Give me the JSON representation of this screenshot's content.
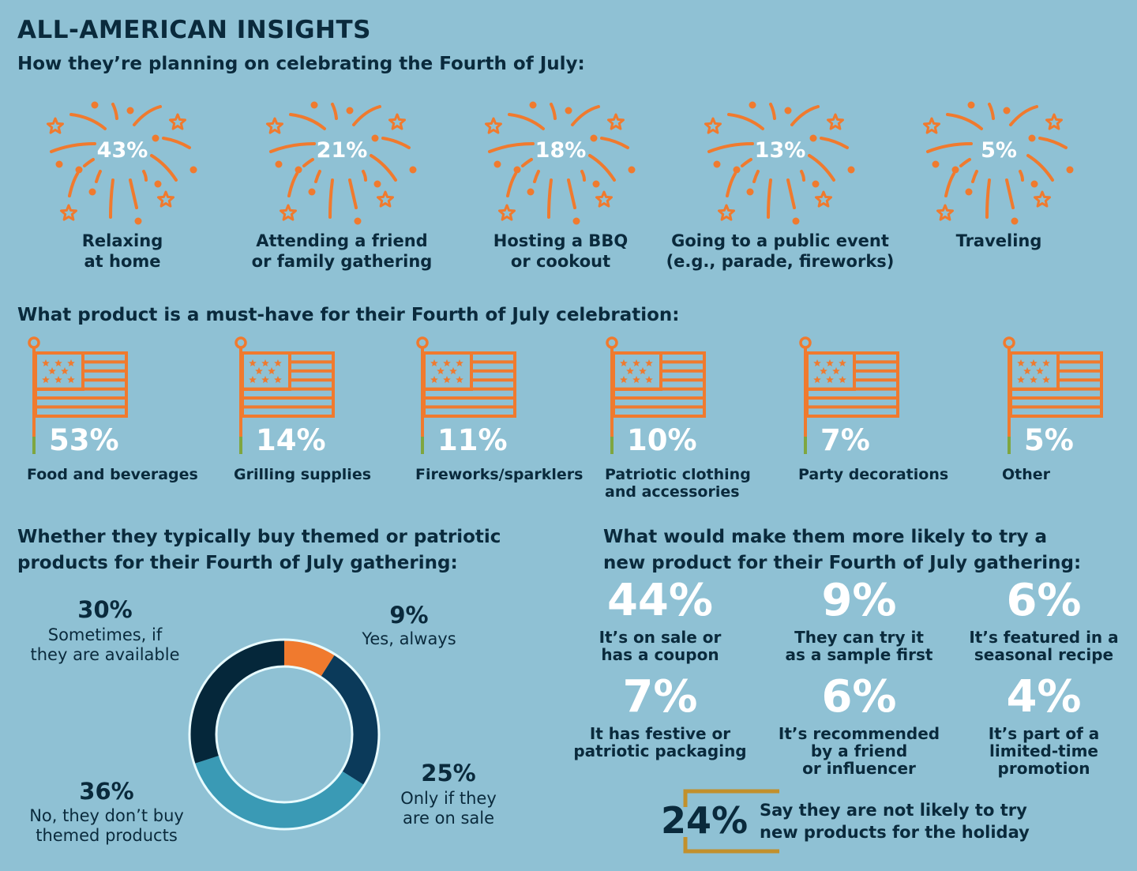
{
  "title": "ALL-AMERICAN INSIGHTS",
  "colors": {
    "background": "#8fc1d4",
    "text": "#0a2a3c",
    "accent": "#f07a2e"
  },
  "celebrating": {
    "heading": "How they’re planning on celebrating the Fourth of July:",
    "icon": "fireworks-icon",
    "items": [
      {
        "pct": "43%",
        "label1": "Relaxing",
        "label2": "at home"
      },
      {
        "pct": "21%",
        "label1": "Attending a friend",
        "label2": "or family gathering"
      },
      {
        "pct": "18%",
        "label1": "Hosting a BBQ",
        "label2": "or cookout"
      },
      {
        "pct": "13%",
        "label1": "Going to a public event",
        "label2": "(e.g., parade, fireworks)"
      },
      {
        "pct": "5%",
        "label1": "Traveling",
        "label2": ""
      }
    ]
  },
  "must_have": {
    "heading": "What product is a must-have for their Fourth of July celebration:",
    "icon": "flag-icon",
    "items": [
      {
        "pct": "53%",
        "label1": "Food and beverages",
        "label2": ""
      },
      {
        "pct": "14%",
        "label1": "Grilling supplies",
        "label2": ""
      },
      {
        "pct": "11%",
        "label1": "Fireworks/sparklers",
        "label2": ""
      },
      {
        "pct": "10%",
        "label1": "Patriotic clothing",
        "label2": "and accessories"
      },
      {
        "pct": "7%",
        "label1": "Party decorations",
        "label2": ""
      },
      {
        "pct": "5%",
        "label1": "Other",
        "label2": ""
      }
    ]
  },
  "themed": {
    "heading1": "Whether they typically buy themed or patriotic",
    "heading2": "products for their Fourth of July gathering:",
    "labels": [
      {
        "pct": "9%",
        "line1": "Yes, always",
        "line2": ""
      },
      {
        "pct": "25%",
        "line1": "Only if they",
        "line2": "are on sale"
      },
      {
        "pct": "36%",
        "line1": "No, they don’t buy",
        "line2": "themed products"
      },
      {
        "pct": "30%",
        "line1": "Sometimes, if",
        "line2": "they are available"
      }
    ]
  },
  "chart_data": {
    "type": "pie",
    "donut": true,
    "title": "Whether they typically buy themed or patriotic products for their Fourth of July gathering:",
    "categories": [
      "Yes, always",
      "Only if they are on sale",
      "No, they don’t buy themed products",
      "Sometimes, if they are available"
    ],
    "values": [
      9,
      25,
      36,
      30
    ],
    "colors": [
      "#f07a2e",
      "#0b3a5a",
      "#3a9ab5",
      "#05273a"
    ],
    "start": "top",
    "direction": "clockwise"
  },
  "try_new": {
    "heading1": "What would make them more likely to try a",
    "heading2": "new product for their Fourth of July gathering:",
    "items": [
      {
        "pct": "44%",
        "line1": "It’s on sale or",
        "line2": "has a coupon",
        "line3": ""
      },
      {
        "pct": "9%",
        "line1": "They can try it",
        "line2": "as a sample first",
        "line3": ""
      },
      {
        "pct": "6%",
        "line1": "It’s featured in a",
        "line2": "seasonal recipe",
        "line3": ""
      },
      {
        "pct": "7%",
        "line1": "It has festive or",
        "line2": "patriotic packaging",
        "line3": ""
      },
      {
        "pct": "6%",
        "line1": "It’s recommended",
        "line2": "by a friend",
        "line3": "or influencer"
      },
      {
        "pct": "4%",
        "line1": "It’s part of a",
        "line2": "limited-time",
        "line3": "promotion"
      }
    ],
    "not_likely": {
      "pct": "24%",
      "line1": "Say they are not likely to try",
      "line2": "new products for the holiday"
    }
  }
}
